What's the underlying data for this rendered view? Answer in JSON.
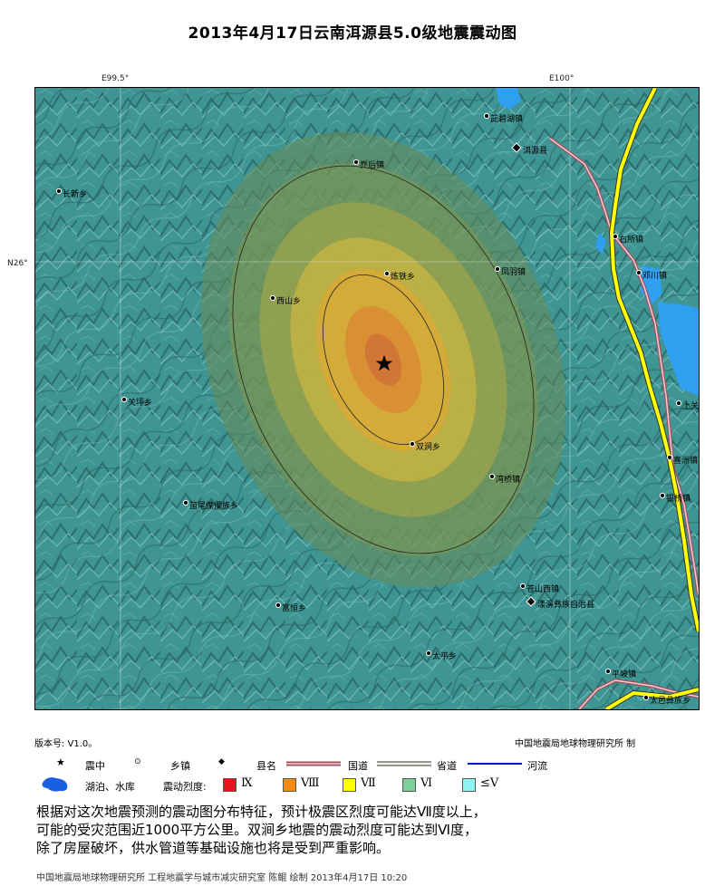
{
  "title": "2013年4月17日云南洱源县5.0级地震震动图",
  "coords": {
    "lon_left": "E99.5°",
    "lon_right": "E100°",
    "lat": "N26°"
  },
  "places": [
    {
      "id": "tenglong",
      "label": "茈碧湖镇",
      "type": "town"
    },
    {
      "id": "eryuan",
      "label": "洱源县",
      "type": "county"
    },
    {
      "id": "qiaohou",
      "label": "乔后镇",
      "type": "town"
    },
    {
      "id": "changxin",
      "label": "长新乡",
      "type": "town"
    },
    {
      "id": "youso",
      "label": "右所镇",
      "type": "town"
    },
    {
      "id": "xitie",
      "label": "炼铁乡",
      "type": "town"
    },
    {
      "id": "fengyu",
      "label": "凤羽镇",
      "type": "town"
    },
    {
      "id": "sanchuan",
      "label": "邓川镇",
      "type": "town"
    },
    {
      "id": "xishan",
      "label": "西山乡",
      "type": "town"
    },
    {
      "id": "zhaozhou",
      "label": "上关",
      "type": "town"
    },
    {
      "id": "tianping",
      "label": "关坪乡",
      "type": "town"
    },
    {
      "id": "shuangjian",
      "label": "双涧乡",
      "type": "town"
    },
    {
      "id": "haidong",
      "label": "喜洲镇",
      "type": "town"
    },
    {
      "id": "yinqiao",
      "label": "湾桥镇",
      "type": "town"
    },
    {
      "id": "jiuhe",
      "label": "苗尾傈僳族乡",
      "type": "town"
    },
    {
      "id": "pinghe",
      "label": "银桥镇",
      "type": "town"
    },
    {
      "id": "yangbi_x",
      "label": "苍山西镇",
      "type": "town"
    },
    {
      "id": "yangbi",
      "label": "漾濞彝族自治县",
      "type": "county"
    },
    {
      "id": "fuheng",
      "label": "富恒乡",
      "type": "town"
    },
    {
      "id": "taiping",
      "label": "太平乡",
      "type": "town"
    },
    {
      "id": "xiaguan_x",
      "label": "平坡镇",
      "type": "town"
    },
    {
      "id": "xiaguan",
      "label": "太邑彝族乡",
      "type": "town"
    }
  ],
  "meta": {
    "version": "版本号: V1.0。",
    "maker": "中国地震局地球物理研究所  制"
  },
  "legend": {
    "epicenter": "震中",
    "town": "乡镇",
    "county": "县名",
    "national_road": "国道",
    "provincial_road": "省道",
    "river": "河流",
    "lake": "湖泊、水库",
    "intensity_label": "震动烈度:",
    "intensities": [
      {
        "label": "Ⅸ",
        "color": "#e8141c"
      },
      {
        "label": "Ⅷ",
        "color": "#f48c14"
      },
      {
        "label": "Ⅶ",
        "color": "#ffff00"
      },
      {
        "label": "Ⅵ",
        "color": "#7fcf9a"
      },
      {
        "label": "≤Ⅴ",
        "color": "#8ff4f4"
      }
    ]
  },
  "description": [
    "根据对这次地震预测的震动图分布特征，预计极震区烈度可能达Ⅶ度以上，",
    "可能的受灾范围近1000平方公里。双涧乡地震的震动烈度可能达到Ⅵ度，",
    "除了房屋破坏，供水管道等基础设施也将是受到严重影响。"
  ],
  "footer": "中国地震局地球物理研究所 工程地震学与城市减灾研究室  陈鲲 绘制 2013年4月17日 10:20"
}
